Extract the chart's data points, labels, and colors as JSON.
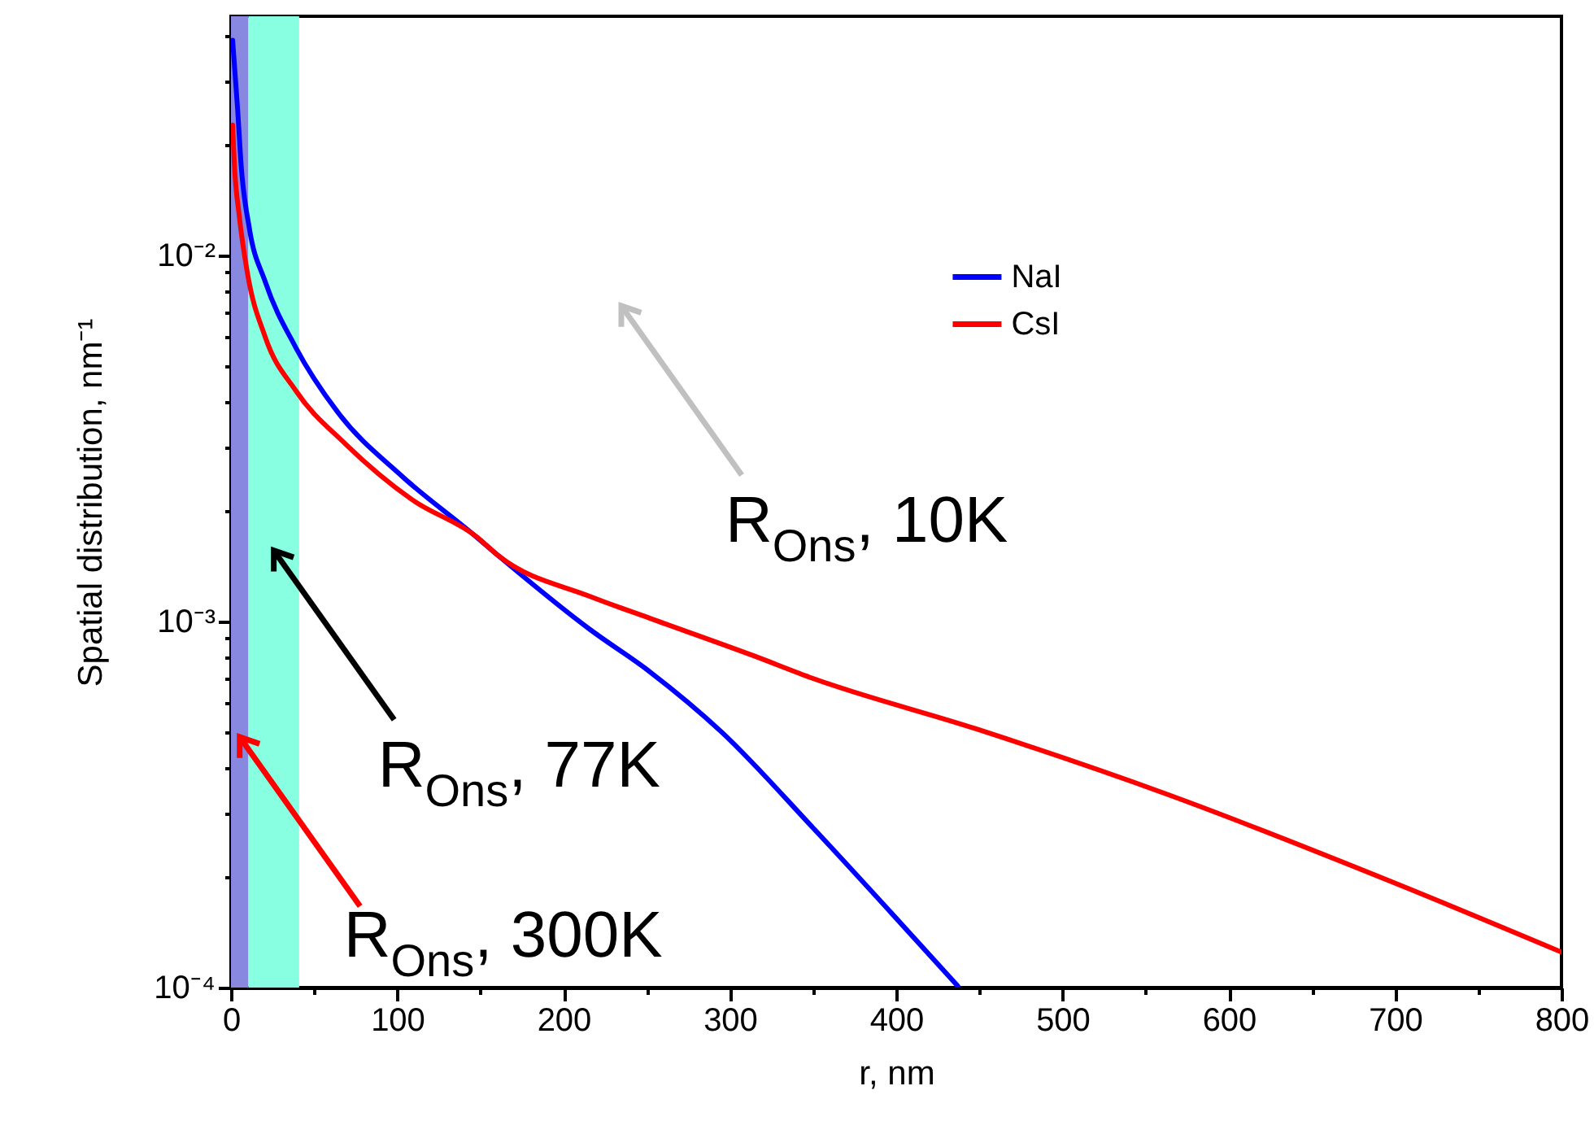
{
  "chart_data": {
    "type": "line",
    "log": "y",
    "xlabel": "r, nm",
    "ylabel": "Spatial distribution, nm⁻¹",
    "xlim": [
      0,
      800
    ],
    "ylim": [
      0.0001,
      0.045
    ],
    "xticks": [
      0,
      {
        "value": 50,
        "label": null
      },
      100,
      {
        "value": 150,
        "label": null
      },
      200,
      {
        "value": 250,
        "label": null
      },
      300,
      {
        "value": 350,
        "label": null
      },
      400,
      {
        "value": 450,
        "label": null
      },
      500,
      {
        "value": 550,
        "label": null
      },
      600,
      {
        "value": 650,
        "label": null
      },
      700,
      {
        "value": 750,
        "label": null
      },
      800
    ],
    "yticks": [
      {
        "value": 0.0001,
        "label": "10⁻⁴"
      },
      {
        "value": 0.0002,
        "label": null
      },
      {
        "value": 0.0003,
        "label": null
      },
      {
        "value": 0.0004,
        "label": null
      },
      {
        "value": 0.0005,
        "label": null
      },
      {
        "value": 0.0006,
        "label": null
      },
      {
        "value": 0.0007,
        "label": null
      },
      {
        "value": 0.0008,
        "label": null
      },
      {
        "value": 0.0009,
        "label": null
      },
      {
        "value": 0.001,
        "label": "10⁻³"
      },
      {
        "value": 0.002,
        "label": null
      },
      {
        "value": 0.003,
        "label": null
      },
      {
        "value": 0.004,
        "label": null
      },
      {
        "value": 0.005,
        "label": null
      },
      {
        "value": 0.006,
        "label": null
      },
      {
        "value": 0.007,
        "label": null
      },
      {
        "value": 0.008,
        "label": null
      },
      {
        "value": 0.009,
        "label": null
      },
      {
        "value": 0.01,
        "label": "10⁻²"
      },
      {
        "value": 0.02,
        "label": null
      },
      {
        "value": 0.03,
        "label": null
      },
      {
        "value": 0.04,
        "label": null
      }
    ],
    "legend": "top right",
    "grid": false,
    "line_style": "solid",
    "marker": "none",
    "series": [
      {
        "name": "NaI",
        "color": "#0000ff",
        "x": [
          1,
          4,
          6,
          11,
          20.5,
          39,
          64,
          103,
          145,
          161,
          216,
          252,
          295,
          350,
          397,
          437
        ],
        "values": [
          0.0387,
          0.0251,
          0.0179,
          0.0119,
          0.0085,
          0.0056,
          0.00374,
          0.00249,
          0.00174,
          0.00151,
          0.00095,
          0.000728,
          0.000499,
          0.000273,
          0.00016,
          0.000101
        ]
      },
      {
        "name": "CsI",
        "color": "#ff0000",
        "x": [
          1,
          2,
          5,
          9.8,
          20.5,
          39,
          69,
          109,
          148,
          161,
          216,
          252,
          314,
          350,
          448,
          560,
          701,
          800
        ],
        "values": [
          0.0227,
          0.0179,
          0.0128,
          0.009,
          0.006,
          0.00427,
          0.00305,
          0.00215,
          0.0017,
          0.00151,
          0.00117,
          0.00102,
          0.000807,
          0.000699,
          0.000509,
          0.000341,
          0.000192,
          0.000125
        ]
      }
    ],
    "bands": [
      {
        "axis": "x",
        "from": 0,
        "to": 10.5,
        "color": "#8888e0",
        "label": "R$_{Ons}$, 300K"
      },
      {
        "axis": "x",
        "from": 10.5,
        "to": 41,
        "color": "#88ffe0",
        "label": "R$_{Ons}$, 77K"
      }
    ],
    "annotations": [
      "R$_{Ons}$, 10K"
    ]
  }
}
